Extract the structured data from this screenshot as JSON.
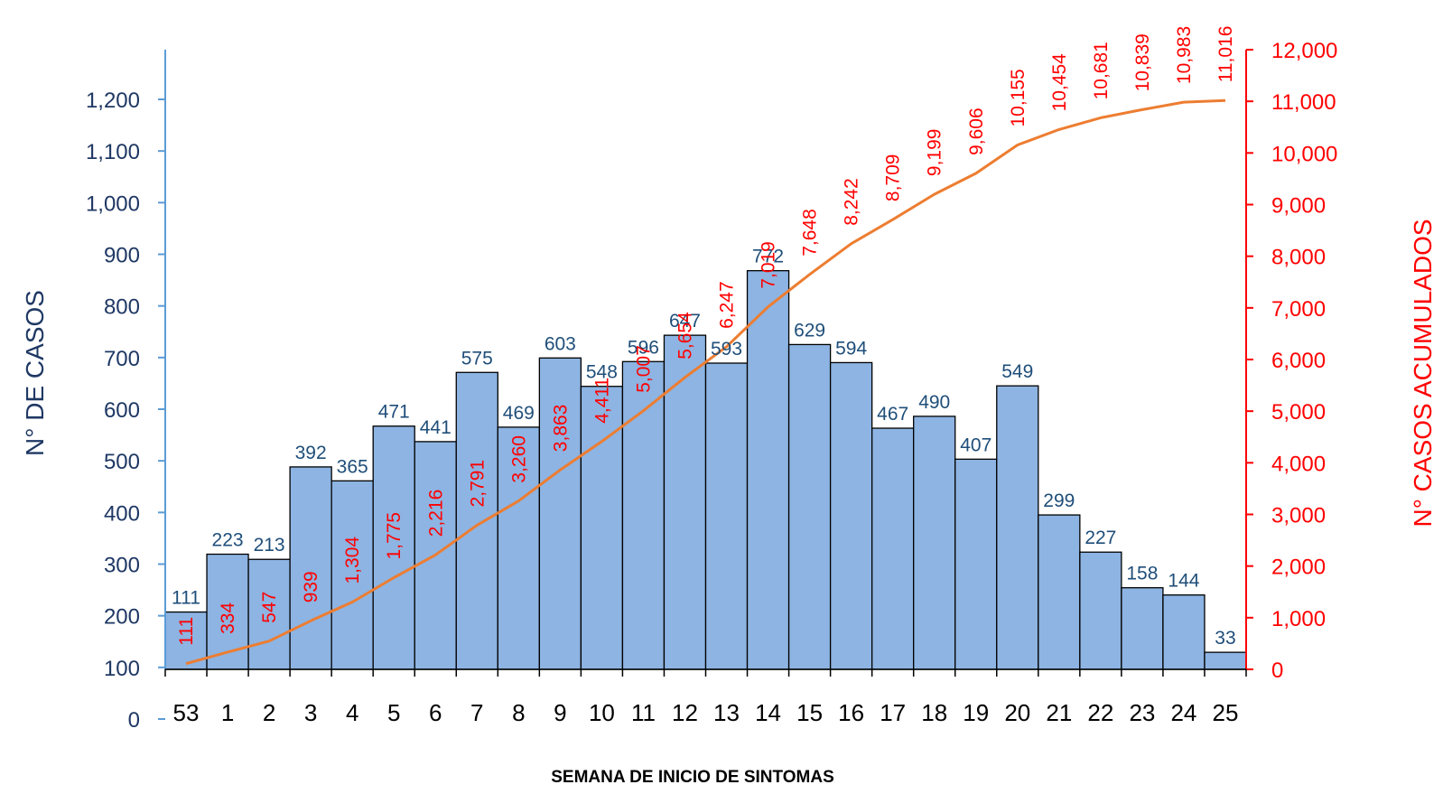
{
  "chart_data": {
    "type": "bar",
    "categories": [
      "53",
      "1",
      "2",
      "3",
      "4",
      "5",
      "6",
      "7",
      "8",
      "9",
      "10",
      "11",
      "12",
      "13",
      "14",
      "15",
      "16",
      "17",
      "18",
      "19",
      "20",
      "21",
      "22",
      "23",
      "24",
      "25"
    ],
    "series": [
      {
        "chart_type": "bar",
        "axis": "left",
        "color": "#8db4e2",
        "values": [
          111,
          223,
          213,
          392,
          365,
          471,
          441,
          575,
          469,
          603,
          548,
          596,
          647,
          593,
          772,
          629,
          594,
          467,
          490,
          407,
          549,
          299,
          227,
          158,
          144,
          33
        ]
      },
      {
        "chart_type": "line",
        "axis": "right",
        "color": "#ed7d31",
        "values": [
          111,
          334,
          547,
          939,
          1304,
          1775,
          2216,
          2791,
          3260,
          3863,
          4411,
          5007,
          5654,
          6247,
          7019,
          7648,
          8242,
          8709,
          9199,
          9606,
          10155,
          10454,
          10681,
          10839,
          10983,
          11016
        ]
      }
    ],
    "bar_labels": [
      "111",
      "223",
      "213",
      "392",
      "365",
      "471",
      "441",
      "575",
      "469",
      "603",
      "548",
      "596",
      "647",
      "593",
      "772",
      "629",
      "594",
      "467",
      "490",
      "407",
      "549",
      "299",
      "227",
      "158",
      "144",
      "33"
    ],
    "line_labels": [
      "111",
      "334",
      "547",
      "939",
      "1,304",
      "1,775",
      "2,216",
      "2,791",
      "3,260",
      "3,863",
      "4,411",
      "5,007",
      "5,654",
      "6,247",
      "7,019",
      "7,648",
      "8,242",
      "8,709",
      "9,199",
      "9,606",
      "10,155",
      "10,454",
      "10,681",
      "10,839",
      "10,983",
      "11,016"
    ],
    "xlabel": "SEMANA DE INICIO DE SINTOMAS",
    "ylabel": "N° DE CASOS",
    "y2label": "N° CASOS ACUMULADOS",
    "ylim": [
      0,
      1200
    ],
    "y2lim": [
      0,
      12000
    ],
    "yticks": [
      "0",
      "100",
      "200",
      "300",
      "400",
      "500",
      "600",
      "700",
      "800",
      "900",
      "1,000",
      "1,100",
      "1,200"
    ],
    "y2ticks": [
      "0",
      "1,000",
      "2,000",
      "3,000",
      "4,000",
      "5,000",
      "6,000",
      "7,000",
      "8,000",
      "9,000",
      "10,000",
      "11,000",
      "12,000"
    ],
    "grid": false,
    "legend": "none",
    "colors": {
      "bar_fill": "#8db4e2",
      "bar_stroke": "#000000",
      "line": "#ed7d31",
      "left_axis": "#5b9bd5",
      "right_axis": "#ff0000",
      "left_text": "#1f3864",
      "bar_label_text": "#1f4e79",
      "right_text": "#ff0000"
    }
  }
}
